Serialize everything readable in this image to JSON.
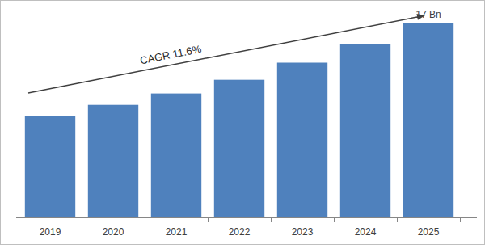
{
  "chart_data": {
    "type": "bar",
    "categories": [
      "2019",
      "2020",
      "2021",
      "2022",
      "2023",
      "2024",
      "2025"
    ],
    "values": [
      8.85,
      9.8,
      10.8,
      12.0,
      13.5,
      15.1,
      17
    ],
    "value_labels": [
      null,
      null,
      null,
      null,
      null,
      null,
      "17 Bn"
    ],
    "data_labels": true,
    "color": "#4f81bd",
    "ylim": [
      0,
      18
    ],
    "tick_labels": "x",
    "grid": false,
    "annotations": [
      "CAGR 11.6%"
    ]
  }
}
